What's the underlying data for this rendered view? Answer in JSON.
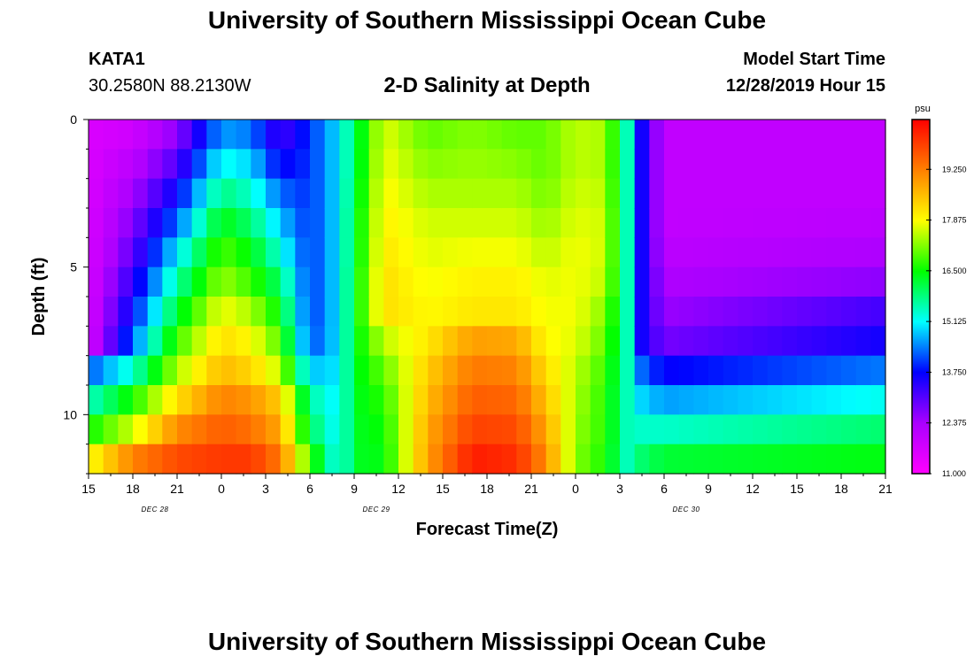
{
  "header": {
    "title": "University of Southern Mississippi Ocean Cube",
    "station": "KATA1",
    "coords": "30.2580N 88.2130W",
    "plot_title": "2-D Salinity at Depth",
    "start_label": "Model Start Time",
    "start_value": "12/28/2019 Hour 15"
  },
  "footer": {
    "title": "University of Southern Mississippi Ocean Cube"
  },
  "chart_data": {
    "type": "heatmap",
    "title": "2-D Salinity at Depth",
    "xlabel": "Forecast Time(Z)",
    "ylabel": "Depth (ft)",
    "x_tick_labels": [
      "15",
      "18",
      "21",
      "0",
      "3",
      "6",
      "9",
      "12",
      "15",
      "18",
      "21",
      "0",
      "3",
      "6",
      "9",
      "12",
      "15",
      "18",
      "21"
    ],
    "date_labels": [
      {
        "text": "DEC 28",
        "tick_index": 2
      },
      {
        "text": "DEC 29",
        "tick_index": 7
      },
      {
        "text": "DEC 30",
        "tick_index": 14
      }
    ],
    "xlim_hours": [
      0,
      54
    ],
    "y_ticks": [
      0,
      5,
      10
    ],
    "ylim_ft": [
      0,
      12
    ],
    "colorbar": {
      "unit": "psu",
      "min": 11.0,
      "max": 20.6,
      "tick_labels": [
        "11.000",
        "12.375",
        "13.750",
        "15.125",
        "16.500",
        "17.875",
        "19.250"
      ]
    },
    "depth_levels_ft": [
      0.5,
      1.5,
      2.5,
      3.5,
      4.5,
      5.5,
      6.5,
      7.5,
      8.5,
      9.5,
      10.5,
      11.5
    ],
    "profiles": [
      {
        "t": 0,
        "v": [
          11.6,
          11.6,
          11.6,
          11.6,
          11.6,
          11.6,
          11.6,
          11.6,
          14.2,
          15.4,
          16.5,
          17.8
        ]
      },
      {
        "t": 3,
        "v": [
          11.8,
          12.1,
          12.4,
          12.7,
          13.0,
          13.4,
          13.8,
          14.3,
          15.4,
          16.6,
          17.6,
          19.2
        ]
      },
      {
        "t": 6,
        "v": [
          12.6,
          13.1,
          13.7,
          14.3,
          15.0,
          15.6,
          16.2,
          16.8,
          17.4,
          18.2,
          19.1,
          19.8
        ]
      },
      {
        "t": 9,
        "v": [
          14.6,
          15.2,
          15.8,
          16.4,
          16.9,
          17.3,
          17.8,
          18.2,
          18.6,
          19.2,
          19.6,
          20.0
        ]
      },
      {
        "t": 11,
        "v": [
          14.4,
          14.9,
          15.4,
          15.9,
          16.4,
          16.8,
          17.4,
          17.9,
          18.3,
          19.0,
          19.4,
          20.0
        ]
      },
      {
        "t": 13,
        "v": [
          13.2,
          13.7,
          14.3,
          14.8,
          15.3,
          15.9,
          16.4,
          16.9,
          17.5,
          18.4,
          18.8,
          19.3
        ]
      },
      {
        "t": 15,
        "v": [
          14.0,
          14.0,
          14.0,
          14.0,
          14.0,
          14.0,
          14.0,
          14.1,
          14.8,
          15.6,
          16.0,
          16.8
        ]
      },
      {
        "t": 17,
        "v": [
          15.0,
          15.0,
          15.0,
          15.0,
          15.0,
          15.0,
          15.0,
          15.0,
          15.0,
          15.0,
          15.0,
          15.0
        ]
      },
      {
        "t": 18,
        "v": [
          16.0,
          16.0,
          16.1,
          16.2,
          16.2,
          16.3,
          16.3,
          16.3,
          16.3,
          16.3,
          16.3,
          16.3
        ]
      },
      {
        "t": 20,
        "v": [
          17.7,
          17.8,
          17.9,
          18.0,
          18.1,
          18.2,
          18.2,
          17.5,
          17.0,
          16.7,
          16.5,
          16.4
        ]
      },
      {
        "t": 23,
        "v": [
          17.0,
          17.2,
          17.4,
          17.6,
          17.7,
          17.8,
          17.9,
          18.1,
          18.4,
          18.6,
          18.8,
          18.9
        ]
      },
      {
        "t": 26,
        "v": [
          17.2,
          17.3,
          17.4,
          17.6,
          17.8,
          18.0,
          18.1,
          18.9,
          19.3,
          19.6,
          19.9,
          20.3
        ]
      },
      {
        "t": 29,
        "v": [
          17.0,
          17.2,
          17.4,
          17.6,
          17.8,
          18.0,
          18.1,
          18.8,
          19.2,
          19.5,
          19.8,
          20.1
        ]
      },
      {
        "t": 31,
        "v": [
          17.0,
          17.0,
          17.1,
          17.3,
          17.5,
          17.7,
          17.8,
          17.9,
          18.2,
          18.5,
          18.8,
          19.1
        ]
      },
      {
        "t": 33,
        "v": [
          17.5,
          17.5,
          17.6,
          17.7,
          17.8,
          17.8,
          17.8,
          17.7,
          17.5,
          17.4,
          17.3,
          17.2
        ]
      },
      {
        "t": 35,
        "v": [
          17.4,
          17.4,
          17.5,
          17.6,
          17.6,
          17.5,
          17.2,
          17.0,
          16.8,
          16.7,
          16.7,
          16.6
        ]
      },
      {
        "t": 36.5,
        "v": [
          15.5,
          15.5,
          15.5,
          15.5,
          15.5,
          15.5,
          15.5,
          15.5,
          15.5,
          15.5,
          15.5,
          15.5
        ]
      },
      {
        "t": 37.5,
        "v": [
          13.6,
          13.6,
          13.6,
          13.6,
          13.6,
          13.6,
          13.6,
          13.6,
          14.3,
          14.9,
          15.4,
          15.9
        ]
      },
      {
        "t": 39,
        "v": [
          12.0,
          12.0,
          12.0,
          12.0,
          12.1,
          12.3,
          12.5,
          12.8,
          13.7,
          14.6,
          15.4,
          16.2
        ]
      },
      {
        "t": 54,
        "v": [
          12.0,
          12.0,
          12.0,
          12.1,
          12.3,
          12.6,
          13.2,
          13.6,
          14.4,
          15.2,
          15.9,
          16.4
        ]
      }
    ]
  }
}
